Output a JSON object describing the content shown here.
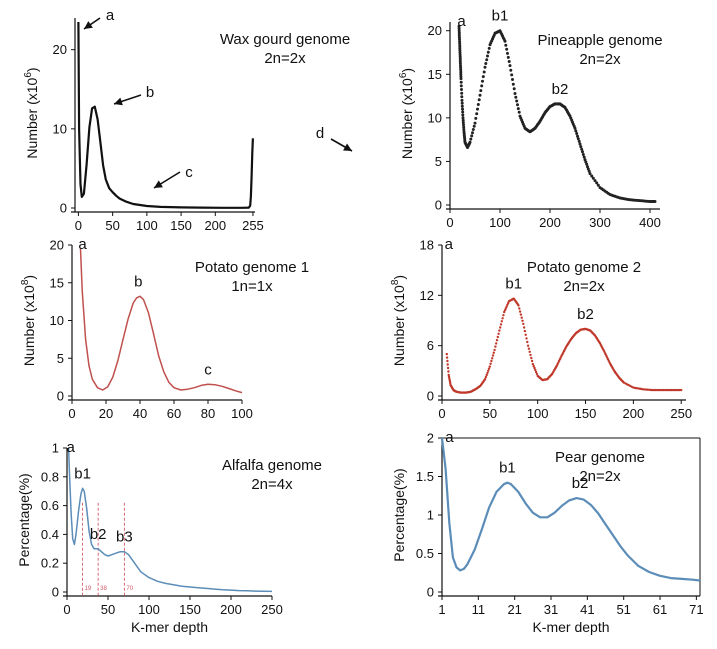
{
  "chart_data": [
    {
      "id": "wax",
      "type": "line",
      "color": "#111111",
      "line_width": 2.2,
      "title_lines": [
        "Wax gourd genome",
        "2n=2x"
      ],
      "ylabel": "Number",
      "yunit_base": "(x10",
      "yunit_exp": "6",
      "yunit_close": ")",
      "xlabel": "",
      "xlim": [
        -5,
        258
      ],
      "ylim": [
        0,
        24
      ],
      "xticks": [
        0,
        50,
        100,
        150,
        200,
        255
      ],
      "yticks": [
        0,
        10,
        20
      ],
      "x": [
        0,
        1,
        3,
        5,
        8,
        12,
        16,
        20,
        24,
        28,
        32,
        36,
        40,
        45,
        50,
        55,
        60,
        70,
        80,
        100,
        120,
        150,
        180,
        210,
        240,
        249,
        251,
        252,
        253,
        254,
        255
      ],
      "y": [
        23.5,
        10,
        3,
        1.4,
        1.8,
        5.5,
        10.2,
        12.6,
        12.8,
        11.2,
        8.4,
        5.4,
        3.6,
        2.5,
        2.0,
        1.55,
        1.2,
        0.8,
        0.5,
        0.25,
        0.14,
        0.08,
        0.05,
        0.03,
        0.03,
        0.05,
        0.3,
        1.5,
        4.0,
        7.0,
        8.8
      ],
      "annotations": [
        {
          "label": "a",
          "x": 0,
          "y": 23.5
        },
        {
          "label": "b",
          "x": 26,
          "y": 12.6
        },
        {
          "label": "c",
          "x": 62,
          "y": 1.4
        },
        {
          "label": "d",
          "x": 253,
          "y": 7.5
        }
      ]
    },
    {
      "id": "pine",
      "type": "scatter",
      "color": "#222222",
      "line_width": 3,
      "title_lines": [
        "Pineapple genome",
        "2n=2x"
      ],
      "ylabel": "Number",
      "yunit_base": "(x10",
      "yunit_exp": "6",
      "yunit_close": ")",
      "xlabel": "",
      "xlim": [
        0,
        420
      ],
      "ylim": [
        0,
        21
      ],
      "xticks": [
        0,
        100,
        200,
        300,
        400
      ],
      "yticks": [
        0,
        5,
        10,
        15,
        20
      ],
      "x": [
        18,
        19,
        20,
        21,
        22,
        24,
        26,
        28,
        30,
        35,
        40,
        50,
        60,
        70,
        80,
        90,
        100,
        110,
        120,
        130,
        140,
        150,
        160,
        170,
        180,
        190,
        200,
        210,
        220,
        230,
        240,
        250,
        260,
        270,
        280,
        300,
        320,
        340,
        360,
        380,
        400,
        410
      ],
      "y": [
        20.5,
        19,
        17.5,
        16,
        14.5,
        12,
        10,
        8.4,
        7.2,
        6.6,
        7.2,
        9.4,
        12.6,
        15.8,
        18.4,
        19.7,
        20.0,
        18.8,
        16.0,
        12.8,
        10.2,
        8.8,
        8.4,
        8.8,
        9.6,
        10.6,
        11.3,
        11.6,
        11.6,
        11.2,
        10.2,
        8.8,
        7.0,
        5.2,
        3.6,
        2.0,
        1.2,
        0.8,
        0.6,
        0.5,
        0.4,
        0.4
      ],
      "annotations": [
        {
          "label": "a",
          "x": 19,
          "y": 20.5
        },
        {
          "label": "b1",
          "x": 100,
          "y": 20
        },
        {
          "label": "b2",
          "x": 220,
          "y": 11.6
        }
      ]
    },
    {
      "id": "pot1",
      "type": "line",
      "color": "#c0504d",
      "line_width": 1.5,
      "title_lines": [
        "Potato genome 1",
        "1n=1x"
      ],
      "ylabel": "Number",
      "yunit_base": "(x10",
      "yunit_exp": "8",
      "yunit_close": ")",
      "xlabel": "",
      "xlim": [
        0,
        100
      ],
      "ylim": [
        0,
        20
      ],
      "xticks": [
        0,
        20,
        40,
        60,
        80,
        100
      ],
      "yticks": [
        0,
        5,
        10,
        15,
        20
      ],
      "x": [
        5,
        6,
        8,
        10,
        12,
        15,
        18,
        21,
        24,
        27,
        30,
        33,
        36,
        38,
        40,
        42,
        45,
        48,
        51,
        54,
        57,
        60,
        64,
        68,
        72,
        76,
        80,
        84,
        88,
        92,
        96,
        100
      ],
      "y": [
        19.5,
        14,
        7.5,
        4.0,
        2.2,
        1.1,
        0.8,
        1.2,
        2.5,
        4.7,
        7.5,
        10.2,
        12.3,
        13.0,
        13.2,
        12.8,
        11.0,
        8.2,
        5.3,
        3.2,
        1.8,
        1.1,
        0.8,
        0.9,
        1.1,
        1.4,
        1.55,
        1.5,
        1.3,
        1.0,
        0.7,
        0.45
      ],
      "annotations": [
        {
          "label": "a",
          "x": 5,
          "y": 19.5
        },
        {
          "label": "b",
          "x": 39,
          "y": 13.2
        },
        {
          "label": "c",
          "x": 80,
          "y": 1.55
        }
      ]
    },
    {
      "id": "pot2",
      "type": "scatter",
      "color": "#c0392b",
      "line_width": 2.4,
      "title_lines": [
        "Potato genome 2",
        "2n=2x"
      ],
      "ylabel": "Number",
      "yunit_base": "(x10",
      "yunit_exp": "8",
      "yunit_close": ")",
      "xlabel": "",
      "xlim": [
        0,
        255
      ],
      "ylim": [
        0,
        18
      ],
      "xticks": [
        0,
        50,
        100,
        150,
        200,
        250
      ],
      "yticks": [
        0,
        6,
        12,
        18
      ],
      "x": [
        5,
        7,
        9,
        12,
        15,
        20,
        25,
        30,
        35,
        40,
        45,
        50,
        55,
        60,
        65,
        70,
        75,
        80,
        85,
        90,
        95,
        100,
        105,
        110,
        115,
        120,
        125,
        130,
        135,
        140,
        145,
        150,
        155,
        160,
        165,
        170,
        175,
        180,
        185,
        190,
        200,
        210,
        220,
        230,
        240,
        250
      ],
      "y": [
        5.0,
        2.5,
        1.3,
        0.7,
        0.5,
        0.4,
        0.4,
        0.5,
        0.8,
        1.2,
        2.0,
        3.5,
        5.5,
        7.8,
        10.0,
        11.3,
        11.6,
        10.8,
        8.6,
        6.0,
        3.8,
        2.4,
        1.9,
        2.0,
        2.6,
        3.6,
        4.8,
        5.9,
        6.8,
        7.5,
        7.9,
        8.0,
        7.8,
        7.2,
        6.3,
        5.2,
        4.0,
        3.0,
        2.2,
        1.6,
        1.0,
        0.8,
        0.7,
        0.7,
        0.7,
        0.7
      ],
      "annotations": [
        {
          "label": "a",
          "x": 5,
          "y": 5.0
        },
        {
          "label": "b1",
          "x": 75,
          "y": 11.6
        },
        {
          "label": "b2",
          "x": 150,
          "y": 8.0
        }
      ]
    },
    {
      "id": "alf",
      "type": "line",
      "color": "#5b8db8",
      "line_width": 1.5,
      "title_lines": [
        "Alfalfa genome",
        "2n=4x"
      ],
      "ylabel": "Percentage(%)",
      "yunit_base": "",
      "yunit_exp": "",
      "yunit_close": "",
      "xlabel": "K-mer depth",
      "xlim": [
        0,
        250
      ],
      "ylim": [
        0,
        1.0
      ],
      "xticks": [
        0,
        50,
        100,
        150,
        200,
        250
      ],
      "yticks": [
        0,
        0.2,
        0.4,
        0.6,
        0.8,
        1.0
      ],
      "x": [
        2,
        3,
        5,
        7,
        9,
        11,
        14,
        17,
        19,
        21,
        24,
        27,
        30,
        33,
        36,
        38,
        42,
        46,
        50,
        55,
        60,
        65,
        70,
        75,
        80,
        85,
        90,
        100,
        110,
        120,
        130,
        140,
        150,
        160,
        170,
        180,
        190,
        200,
        210,
        220,
        230,
        240,
        250
      ],
      "y": [
        1.0,
        0.82,
        0.55,
        0.37,
        0.33,
        0.4,
        0.56,
        0.68,
        0.72,
        0.7,
        0.58,
        0.42,
        0.33,
        0.3,
        0.3,
        0.3,
        0.28,
        0.26,
        0.25,
        0.26,
        0.27,
        0.28,
        0.28,
        0.26,
        0.22,
        0.18,
        0.14,
        0.1,
        0.075,
        0.06,
        0.05,
        0.04,
        0.035,
        0.03,
        0.025,
        0.02,
        0.016,
        0.013,
        0.01,
        0.008,
        0.006,
        0.005,
        0.004
      ],
      "annotations": [
        {
          "label": "a",
          "x": 2,
          "y": 1.0
        },
        {
          "label": "b1",
          "x": 19,
          "y": 0.72
        },
        {
          "label": "b2",
          "x": 38,
          "y": 0.3
        },
        {
          "label": "b3",
          "x": 70,
          "y": 0.28
        }
      ],
      "markers": [
        {
          "x": 19,
          "label": "19"
        },
        {
          "x": 38,
          "label": "38"
        },
        {
          "x": 70,
          "label": "70"
        }
      ]
    },
    {
      "id": "pear",
      "type": "line",
      "color": "#5b8db8",
      "line_width": 2.2,
      "title_lines": [
        "Pear genome",
        "2n=2x"
      ],
      "ylabel": "Percentage(%)",
      "yunit_base": "",
      "yunit_exp": "",
      "yunit_close": "",
      "xlabel": "K-mer depth",
      "xlim": [
        1,
        72
      ],
      "ylim": [
        0,
        2.0
      ],
      "xticks": [
        1,
        11,
        21,
        31,
        41,
        51,
        61,
        71
      ],
      "yticks": [
        0,
        0.5,
        1.0,
        1.5,
        2.0
      ],
      "x": [
        1,
        2,
        3,
        4,
        5,
        6,
        7,
        8,
        10,
        12,
        14,
        16,
        18,
        19,
        20,
        22,
        24,
        26,
        28,
        30,
        32,
        34,
        36,
        38,
        40,
        42,
        44,
        46,
        48,
        50,
        52,
        55,
        58,
        61,
        64,
        67,
        70,
        72
      ],
      "y": [
        2.0,
        1.6,
        0.9,
        0.45,
        0.32,
        0.28,
        0.3,
        0.36,
        0.55,
        0.82,
        1.1,
        1.3,
        1.4,
        1.42,
        1.4,
        1.3,
        1.15,
        1.03,
        0.97,
        0.97,
        1.03,
        1.12,
        1.19,
        1.22,
        1.2,
        1.13,
        1.02,
        0.88,
        0.74,
        0.6,
        0.48,
        0.34,
        0.26,
        0.21,
        0.18,
        0.17,
        0.16,
        0.15
      ],
      "annotations": [
        {
          "label": "a",
          "x": 2.5,
          "y": 1.9
        },
        {
          "label": "b1",
          "x": 19,
          "y": 1.42
        },
        {
          "label": "b2",
          "x": 39,
          "y": 1.22
        }
      ]
    }
  ]
}
